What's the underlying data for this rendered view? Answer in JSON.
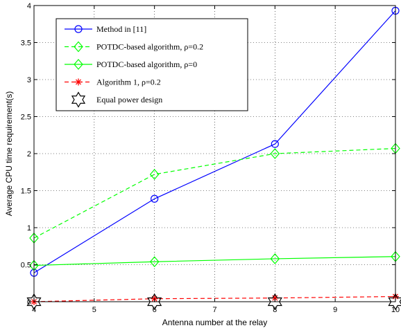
{
  "chart_data": {
    "type": "line",
    "title": "",
    "xlabel": "Antenna number at the relay",
    "ylabel": "Average CPU time requirement(s)",
    "xlim": [
      4,
      10
    ],
    "ylim": [
      0,
      4
    ],
    "xticks": [
      "4",
      "5",
      "6",
      "7",
      "8",
      "9",
      "10"
    ],
    "yticks": [
      "0",
      "0.5",
      "1",
      "1.5",
      "2",
      "2.5",
      "3",
      "3.5",
      "4"
    ],
    "grid": true,
    "legend_position": "top-left",
    "series": [
      {
        "name": "Method in [11]",
        "x": [
          4,
          6,
          8,
          10
        ],
        "y": [
          0.39,
          1.39,
          2.13,
          3.93
        ],
        "color": "#0000ff",
        "dash": "solid",
        "marker": "circle"
      },
      {
        "name": "POTDC-based algorithm, ρ=0.2",
        "x": [
          4,
          6,
          8,
          10
        ],
        "y": [
          0.86,
          1.72,
          2.0,
          2.07
        ],
        "color": "#00ff00",
        "dash": "dashed",
        "marker": "diamond"
      },
      {
        "name": "POTDC-based algorithm, ρ=0",
        "x": [
          4,
          6,
          8,
          10
        ],
        "y": [
          0.49,
          0.54,
          0.58,
          0.61
        ],
        "color": "#00ff00",
        "dash": "solid",
        "marker": "diamond"
      },
      {
        "name": "Algorithm 1, ρ=0.2",
        "x": [
          4,
          6,
          8,
          10
        ],
        "y": [
          0.0,
          0.04,
          0.05,
          0.07
        ],
        "color": "#ff0000",
        "dash": "dashed",
        "marker": "asterisk"
      },
      {
        "name": "Equal power design",
        "x": [
          4,
          6,
          8,
          10
        ],
        "y": [
          0.0,
          0.0,
          0.0,
          0.0
        ],
        "color": "#000000",
        "dash": "none",
        "marker": "hexagram"
      }
    ]
  }
}
